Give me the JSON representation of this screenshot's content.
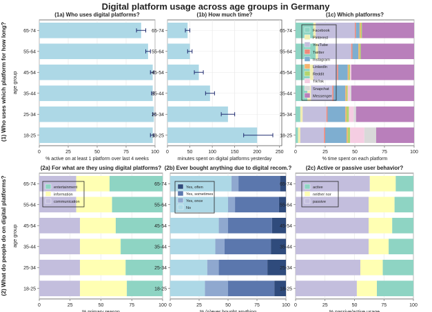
{
  "figure_title": "Digital platform usage across age groups in Germany",
  "row_labels": [
    "(1) Who uses which platform for how long?",
    "(2) What do people do on digital platforms?"
  ],
  "colors": {
    "bar": "#add8e6",
    "errorbar": "#1f2a6e",
    "facebook": "#8ed4c3",
    "pinterest": "#f2eeb3",
    "youtube": "#c3bedd",
    "twitter": "#ee8a7c",
    "instagram": "#7eaed0",
    "linkedin": "#f4b26c",
    "reddit": "#b3d56e",
    "tiktok": "#f5cde2",
    "snapchat": "#d9d9d9",
    "messenger": "#b97fbb",
    "entertainment": "#8ed4c3",
    "information": "#ffffb3",
    "communication": "#c3bedd",
    "yes_often": "#2f4b7c",
    "yes_sometimes": "#5b77ad",
    "yes_once": "#8fa8cf",
    "no": "#add8e6",
    "active": "#8ed4c3",
    "neither_nor": "#ffffb3",
    "passive": "#c3bedd"
  },
  "chart_data": [
    {
      "id": "1a",
      "type": "bar",
      "orientation": "horizontal",
      "title": "(1a) Who uses digital platforms?",
      "xlabel": "% active on at least 1 platform over last 4 weeks",
      "ylabel": "age group",
      "categories": [
        "65-74",
        "55-64",
        "45-54",
        "35-44",
        "25-34",
        "18-25"
      ],
      "values": [
        88,
        94,
        98,
        98,
        99,
        98
      ],
      "error_low": [
        84,
        92,
        96,
        97,
        98,
        96
      ],
      "error_high": [
        92,
        96,
        99,
        99,
        100,
        99
      ],
      "xlim": [
        0,
        100
      ],
      "xticks": [
        0,
        25,
        50,
        75,
        100
      ],
      "xtick_labels": [
        "0",
        "25",
        "50",
        "75",
        "100"
      ]
    },
    {
      "id": "1b",
      "type": "bar",
      "orientation": "horizontal",
      "title": "(1b) How much time?",
      "xlabel": "minutes spent on digital platforms yesterday",
      "categories": [
        "65-74",
        "55-64",
        "45-54",
        "35-44",
        "25-34",
        "18-25"
      ],
      "values": [
        45,
        50,
        70,
        95,
        135,
        200
      ],
      "error_low": [
        40,
        45,
        60,
        85,
        120,
        170
      ],
      "error_high": [
        50,
        55,
        80,
        105,
        150,
        235
      ],
      "xlim": [
        0,
        255
      ],
      "xticks": [
        0,
        50,
        100,
        150,
        200,
        250
      ],
      "xtick_labels": [
        "0",
        "50",
        "100",
        "150",
        "200",
        "250"
      ]
    },
    {
      "id": "1c",
      "type": "bar",
      "stacked": true,
      "orientation": "horizontal",
      "title": "(1c) Which platforms?",
      "xlabel": "% time spent on each platform",
      "categories": [
        "65-74",
        "55-64",
        "45-54",
        "35-44",
        "25-34",
        "18-25"
      ],
      "xlim": [
        0,
        100
      ],
      "xticks": [
        0,
        25,
        50,
        75,
        100
      ],
      "xtick_labels": [
        "0",
        "25",
        "50",
        "75",
        "100"
      ],
      "legend": "top-left",
      "series": [
        {
          "name": "Facebook",
          "color_key": "facebook",
          "values": [
            15,
            17,
            12,
            10,
            4,
            2
          ]
        },
        {
          "name": "Pinterest",
          "color_key": "pinterest",
          "values": [
            2,
            2,
            3,
            3,
            2,
            2
          ]
        },
        {
          "name": "YouTube",
          "color_key": "youtube",
          "values": [
            33,
            28,
            20,
            18,
            20,
            20
          ]
        },
        {
          "name": "Twitter",
          "color_key": "twitter",
          "values": [
            1,
            1,
            1,
            1,
            1,
            1
          ]
        },
        {
          "name": "Instagram",
          "color_key": "instagram",
          "values": [
            3,
            5,
            8,
            10,
            15,
            18
          ]
        },
        {
          "name": "LinkedIn",
          "color_key": "linkedin",
          "values": [
            1,
            1,
            1,
            1,
            1,
            1
          ]
        },
        {
          "name": "Reddit",
          "color_key": "reddit",
          "values": [
            1,
            1,
            1,
            1,
            2,
            2
          ]
        },
        {
          "name": "TikTok",
          "color_key": "tiktok",
          "values": [
            0,
            0,
            1,
            2,
            4,
            12
          ]
        },
        {
          "name": "Snapchat",
          "color_key": "snapchat",
          "values": [
            0,
            0,
            0,
            1,
            2,
            10
          ]
        },
        {
          "name": "Messenger",
          "color_key": "messenger",
          "values": [
            44,
            45,
            53,
            53,
            49,
            32
          ]
        }
      ]
    },
    {
      "id": "2a",
      "type": "bar",
      "stacked": true,
      "orientation": "horizontal",
      "title": "(2a) For what are they using digital platforms?",
      "xlabel": "% primary reason",
      "ylabel": "age group",
      "categories": [
        "65-74",
        "55-64",
        "45-54",
        "35-44",
        "25-34",
        "18-25"
      ],
      "xlim": [
        0,
        100
      ],
      "xticks": [
        0,
        25,
        50,
        75,
        100
      ],
      "xtick_labels": [
        "0",
        "25",
        "50",
        "75",
        "100"
      ],
      "legend": "top-left",
      "series": [
        {
          "name": "communication",
          "color_key": "communication",
          "values": [
            30,
            30,
            33,
            33,
            33,
            33
          ]
        },
        {
          "name": "information",
          "color_key": "information",
          "values": [
            27,
            29,
            29,
            33,
            37,
            38
          ]
        },
        {
          "name": "entertainment",
          "color_key": "entertainment",
          "values": [
            43,
            41,
            38,
            34,
            30,
            29
          ]
        }
      ],
      "legend_order": [
        "entertainment",
        "information",
        "communication"
      ]
    },
    {
      "id": "2b",
      "type": "bar",
      "stacked": true,
      "orientation": "horizontal",
      "title": "(2b) Ever bought anything due to digital recom.?",
      "xlabel": "% (n)ever bought anything",
      "categories": [
        "65-74",
        "55-64",
        "45-54",
        "35-44",
        "25-34",
        "18-25"
      ],
      "xlim": [
        0,
        100
      ],
      "xticks": [
        0,
        25,
        50,
        75,
        100
      ],
      "xtick_labels": [
        "0",
        "25",
        "50",
        "75",
        "100"
      ],
      "legend": "top-left",
      "series": [
        {
          "name": "No",
          "color_key": "no",
          "values": [
            53,
            50,
            42,
            39,
            32,
            30
          ]
        },
        {
          "name": "Yes, once",
          "color_key": "yes_once",
          "values": [
            6,
            6,
            8,
            8,
            10,
            20
          ]
        },
        {
          "name": "Yes, sometimes",
          "color_key": "yes_sometimes",
          "values": [
            36,
            38,
            38,
            40,
            42,
            40
          ]
        },
        {
          "name": "Yes, often",
          "color_key": "yes_often",
          "values": [
            5,
            6,
            12,
            13,
            16,
            10
          ]
        }
      ],
      "legend_order": [
        "Yes, often",
        "Yes, sometimes",
        "Yes, once",
        "No"
      ]
    },
    {
      "id": "2c",
      "type": "bar",
      "stacked": true,
      "orientation": "horizontal",
      "title": "(2c) Active or passive user behavior?",
      "xlabel": "% passive/active usage",
      "categories": [
        "65-74",
        "55-64",
        "45-54",
        "35-44",
        "25-34",
        "18-25"
      ],
      "xlim": [
        0,
        100
      ],
      "xticks": [
        0,
        25,
        50,
        75,
        100
      ],
      "xtick_labels": [
        "0",
        "25",
        "50",
        "75",
        "100"
      ],
      "legend": "top-left",
      "series": [
        {
          "name": "passive",
          "color_key": "passive",
          "values": [
            63,
            62,
            62,
            62,
            55,
            52
          ]
        },
        {
          "name": "neither nor",
          "color_key": "neither_nor",
          "values": [
            22,
            22,
            20,
            17,
            19,
            17
          ]
        },
        {
          "name": "active",
          "color_key": "active",
          "values": [
            15,
            16,
            18,
            21,
            26,
            31
          ]
        }
      ],
      "legend_order": [
        "active",
        "neither nor",
        "passive"
      ]
    }
  ]
}
